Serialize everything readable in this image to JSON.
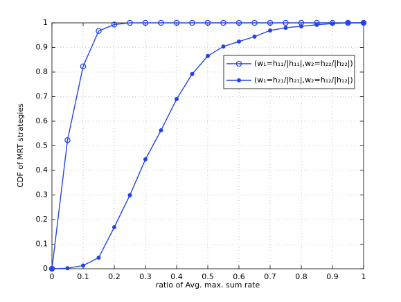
{
  "chart_data": {
    "type": "line",
    "xlabel": "ratio of Avg. max. sum rate",
    "ylabel": "CDF of MRT strategies",
    "x": [
      0,
      0.05,
      0.1,
      0.15,
      0.2,
      0.25,
      0.3,
      0.35,
      0.4,
      0.45,
      0.5,
      0.55,
      0.6,
      0.65,
      0.7,
      0.75,
      0.8,
      0.85,
      0.9,
      0.95,
      1
    ],
    "series": [
      {
        "name": "(w₁=h₁₁/|h₁₁|,w₂=h₂₂/|h₂₂|)",
        "color": "#2343e8",
        "marker": "open-circle",
        "values": [
          0,
          0.523,
          0.823,
          0.967,
          0.993,
          1,
          1,
          1,
          1,
          1,
          1,
          1,
          1,
          1,
          1,
          1,
          1,
          1,
          1,
          1,
          1
        ]
      },
      {
        "name": "(w₁=h₂₁/|h₂₁|,w₂=h₁₂/|h₁₂|)",
        "color": "#2343e8",
        "marker": "dot",
        "values": [
          0,
          0.002,
          0.013,
          0.045,
          0.169,
          0.299,
          0.445,
          0.563,
          0.69,
          0.792,
          0.865,
          0.904,
          0.924,
          0.944,
          0.969,
          0.98,
          0.986,
          0.992,
          0.997,
          1,
          1
        ]
      }
    ],
    "xlim": [
      0,
      1
    ],
    "ylim": [
      0,
      1
    ],
    "xticks": [
      0,
      0.1,
      0.2,
      0.3,
      0.4,
      0.5,
      0.6,
      0.7,
      0.8,
      0.9,
      1
    ],
    "yticks": [
      0,
      0.1,
      0.2,
      0.3,
      0.4,
      0.5,
      0.6,
      0.7,
      0.8,
      0.9,
      1
    ],
    "grid": true,
    "legend": "northeast"
  }
}
